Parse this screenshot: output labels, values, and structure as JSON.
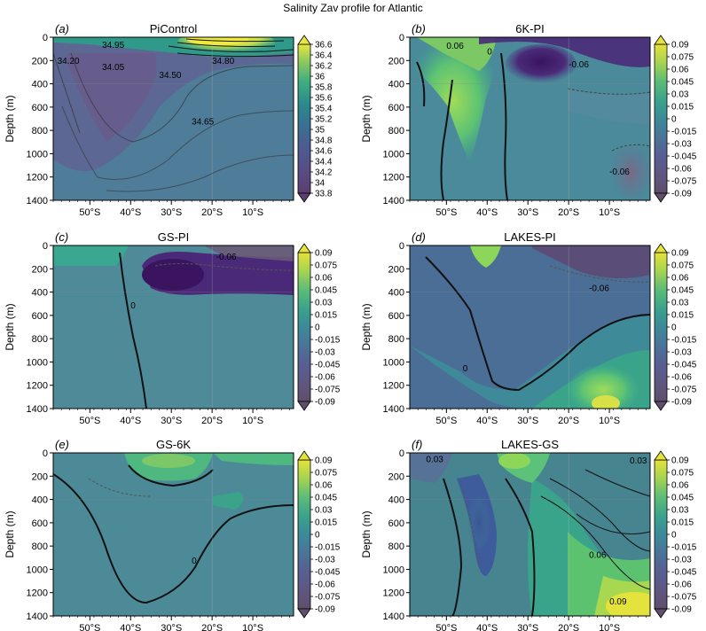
{
  "figure": {
    "title": "Salinity Zav profile for Atlantic"
  },
  "colors": {
    "viridis": [
      "#440154",
      "#482777",
      "#3e4989",
      "#31688e",
      "#26828e",
      "#1f9e89",
      "#35b779",
      "#6ece58",
      "#b5de2b",
      "#fde725"
    ],
    "anomaly": [
      "#5a4a5e",
      "#6a5878",
      "#5a7098",
      "#4a88a0",
      "#42a0a0",
      "#4ab890",
      "#70c870",
      "#a8d850",
      "#d8e048"
    ],
    "contour": "#111111"
  },
  "chart_data": [
    {
      "type": "heatmap",
      "panel_letter": "(a)",
      "title": "PiControl",
      "ylabel": "Depth (m)",
      "x_ticks": [
        "50°S",
        "40°S",
        "30°S",
        "20°S",
        "10°S"
      ],
      "x_tick_lat": [
        -50,
        -40,
        -30,
        -20,
        -10
      ],
      "x_range": [
        -59,
        0
      ],
      "y_ticks": [
        "0",
        "200",
        "400",
        "600",
        "800",
        "1000",
        "1200",
        "1400"
      ],
      "y_range": [
        0,
        1400
      ],
      "colorbar_ticks": [
        "36.6",
        "36.4",
        "36.2",
        "36",
        "35.8",
        "35.6",
        "35.4",
        "35.2",
        "35",
        "34.8",
        "34.6",
        "34.4",
        "34.2",
        "34",
        "33.8"
      ],
      "colorbar_range": [
        33.8,
        36.6
      ],
      "contour_labels": [
        "34.20",
        "34.05",
        "34.50",
        "34.65",
        "34.80",
        "34.95"
      ],
      "contour_label_pos": [
        [
          -58,
          230
        ],
        [
          -47,
          280
        ],
        [
          -33,
          350
        ],
        [
          -25,
          750
        ],
        [
          -20,
          230
        ],
        [
          -47,
          90
        ]
      ]
    },
    {
      "type": "heatmap",
      "panel_letter": "(b)",
      "title": "6K-PI",
      "ylabel": "Depth (m)",
      "x_ticks": [
        "50°S",
        "40°S",
        "30°S",
        "20°S",
        "10°S"
      ],
      "x_tick_lat": [
        -50,
        -40,
        -30,
        -20,
        -10
      ],
      "x_range": [
        -59,
        0
      ],
      "y_ticks": [
        "0",
        "200",
        "400",
        "600",
        "800",
        "1000",
        "1200",
        "1400"
      ],
      "y_range": [
        0,
        1400
      ],
      "colorbar_ticks": [
        "0.09",
        "0.075",
        "0.06",
        "0.045",
        "0.03",
        "0.015",
        "0",
        "-0.015",
        "-0.03",
        "-0.045",
        "-0.06",
        "-0.075",
        "-0.09"
      ],
      "colorbar_range": [
        -0.09,
        0.09
      ],
      "contour_labels": [
        "0.06",
        "0",
        "-0.06",
        "-0.06"
      ],
      "contour_label_pos": [
        [
          -50,
          100
        ],
        [
          -40,
          150
        ],
        [
          -20,
          260
        ],
        [
          -10,
          1180
        ]
      ]
    },
    {
      "type": "heatmap",
      "panel_letter": "(c)",
      "title": "GS-PI",
      "ylabel": "Depth (m)",
      "x_ticks": [
        "50°S",
        "40°S",
        "30°S",
        "20°S",
        "10°S"
      ],
      "x_tick_lat": [
        -50,
        -40,
        -30,
        -20,
        -10
      ],
      "x_range": [
        -59,
        0
      ],
      "y_ticks": [
        "0",
        "200",
        "400",
        "600",
        "800",
        "1000",
        "1200",
        "1400"
      ],
      "y_range": [
        0,
        1400
      ],
      "colorbar_ticks": [
        "0.09",
        "0.075",
        "0.06",
        "0.045",
        "0.03",
        "0.015",
        "0",
        "-0.015",
        "-0.03",
        "-0.045",
        "-0.06",
        "-0.075",
        "-0.09"
      ],
      "colorbar_range": [
        -0.09,
        0.09
      ],
      "contour_labels": [
        "0",
        "-0.06"
      ],
      "contour_label_pos": [
        [
          -40,
          540
        ],
        [
          -19,
          120
        ]
      ]
    },
    {
      "type": "heatmap",
      "panel_letter": "(d)",
      "title": "LAKES-PI",
      "ylabel": "Depth (m)",
      "x_ticks": [
        "50°S",
        "40°S",
        "30°S",
        "20°S",
        "10°S"
      ],
      "x_tick_lat": [
        -50,
        -40,
        -30,
        -20,
        -10
      ],
      "x_range": [
        -59,
        0
      ],
      "y_ticks": [
        "0",
        "200",
        "400",
        "600",
        "800",
        "1000",
        "1200",
        "1400"
      ],
      "y_range": [
        0,
        1400
      ],
      "colorbar_ticks": [
        "0.09",
        "0.075",
        "0.06",
        "0.045",
        "0.03",
        "0.015",
        "0",
        "-0.015",
        "-0.03",
        "-0.045",
        "-0.06",
        "-0.075",
        "-0.09"
      ],
      "colorbar_range": [
        -0.09,
        0.09
      ],
      "contour_labels": [
        "0",
        "-0.06"
      ],
      "contour_label_pos": [
        [
          -46,
          1080
        ],
        [
          -15,
          390
        ]
      ]
    },
    {
      "type": "heatmap",
      "panel_letter": "(e)",
      "title": "GS-6K",
      "ylabel": "Depth (m)",
      "x_ticks": [
        "50°S",
        "40°S",
        "30°S",
        "20°S",
        "10°S"
      ],
      "x_tick_lat": [
        -50,
        -40,
        -30,
        -20,
        -10
      ],
      "x_range": [
        -59,
        0
      ],
      "y_ticks": [
        "0",
        "200",
        "400",
        "600",
        "800",
        "1000",
        "1200",
        "1400"
      ],
      "y_range": [
        0,
        1400
      ],
      "colorbar_ticks": [
        "0.09",
        "0.075",
        "0.06",
        "0.045",
        "0.03",
        "0.015",
        "0",
        "-0.015",
        "-0.03",
        "-0.045",
        "-0.06",
        "-0.075",
        "-0.09"
      ],
      "colorbar_range": [
        -0.09,
        0.09
      ],
      "contour_labels": [
        "0"
      ],
      "contour_label_pos": [
        [
          -25,
          950
        ]
      ]
    },
    {
      "type": "heatmap",
      "panel_letter": "(f)",
      "title": "LAKES-GS",
      "ylabel": "Depth (m)",
      "x_ticks": [
        "50°S",
        "40°S",
        "30°S",
        "20°S",
        "10°S"
      ],
      "x_tick_lat": [
        -50,
        -40,
        -30,
        -20,
        -10
      ],
      "x_range": [
        -59,
        0
      ],
      "y_ticks": [
        "0",
        "200",
        "400",
        "600",
        "800",
        "1000",
        "1200",
        "1400"
      ],
      "y_range": [
        0,
        1400
      ],
      "colorbar_ticks": [
        "0.09",
        "0.075",
        "0.06",
        "0.045",
        "0.03",
        "0.015",
        "0",
        "-0.015",
        "-0.03",
        "-0.045",
        "-0.06",
        "-0.075",
        "-0.09"
      ],
      "colorbar_range": [
        -0.09,
        0.09
      ],
      "contour_labels": [
        "0.03",
        "0.06",
        "0.09",
        "0.03"
      ],
      "contour_label_pos": [
        [
          -55,
          80
        ],
        [
          -15,
          900
        ],
        [
          -10,
          1300
        ],
        [
          -5,
          90
        ]
      ]
    }
  ]
}
